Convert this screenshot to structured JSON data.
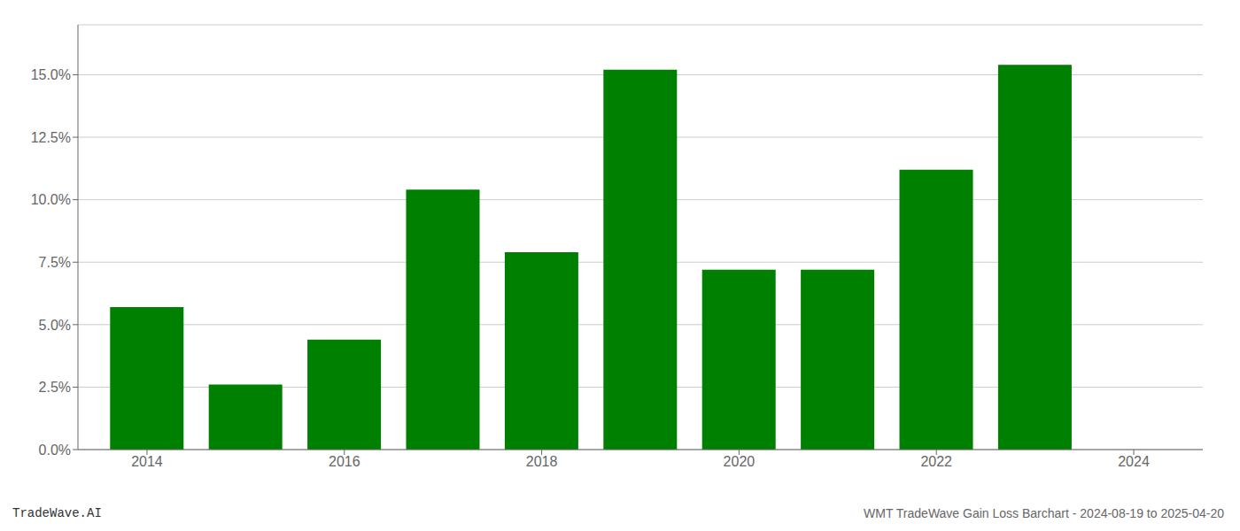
{
  "chart_data": {
    "type": "bar",
    "x": [
      2014,
      2015,
      2016,
      2017,
      2018,
      2019,
      2020,
      2021,
      2022,
      2023
    ],
    "values": [
      0.057,
      0.026,
      0.044,
      0.104,
      0.079,
      0.152,
      0.072,
      0.072,
      0.112,
      0.154
    ],
    "color": "#008000",
    "xlim": [
      2013.3,
      2024.7
    ],
    "xticks": [
      2014,
      2016,
      2018,
      2020,
      2022,
      2024
    ],
    "ylim": [
      0,
      0.17
    ],
    "yticks": [
      {
        "value": 0.0,
        "label": "0.0%"
      },
      {
        "value": 0.025,
        "label": "2.5%"
      },
      {
        "value": 0.05,
        "label": "5.0%"
      },
      {
        "value": 0.075,
        "label": "7.5%"
      },
      {
        "value": 0.1,
        "label": "10.0%"
      },
      {
        "value": 0.125,
        "label": "12.5%"
      },
      {
        "value": 0.15,
        "label": "15.0%"
      }
    ],
    "grid": true,
    "annotations": [
      "TradeWave.AI",
      "WMT TradeWave Gain Loss Barchart - 2024-08-19 to 2025-04-20"
    ]
  }
}
